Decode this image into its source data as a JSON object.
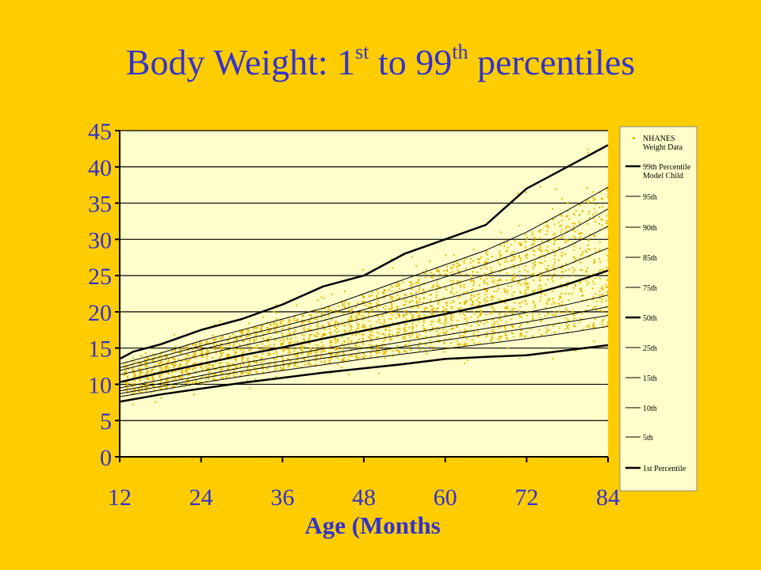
{
  "title": {
    "part1": "Body Weight:  1",
    "sup1": "st",
    "part2": " to 99",
    "sup2": "th",
    "part3": " percentiles"
  },
  "colors": {
    "background": "#FFCC00",
    "plot_area": "#FFFFCC",
    "text": "#3333CC",
    "points": "#E8B800",
    "lines": "#000000"
  },
  "chart_data": {
    "type": "line",
    "title": "Body Weight:  1st to 99th percentiles",
    "xlabel": "Age (Months",
    "ylabel": "",
    "xlim": [
      12,
      84
    ],
    "ylim": [
      0,
      45
    ],
    "xticks": [
      12,
      24,
      36,
      48,
      60,
      72,
      84
    ],
    "yticks": [
      0,
      5,
      10,
      15,
      20,
      25,
      30,
      35,
      40,
      45
    ],
    "grid": "horizontal",
    "legend_placement": "right",
    "scatter_series": {
      "name": "NHANES Weight Data",
      "description_ages_months": [
        12,
        84
      ],
      "style": "dense scatter of small points around the median curve"
    },
    "series": [
      {
        "name": "99th Percentile Model Child",
        "bold": true,
        "x": [
          12,
          14,
          18,
          24,
          30,
          36,
          42,
          48,
          54,
          60,
          66,
          72,
          78,
          84
        ],
        "y": [
          13.5,
          14.5,
          15.5,
          17.5,
          19,
          21,
          23.5,
          25,
          28,
          30,
          32,
          37,
          40,
          43
        ]
      },
      {
        "name": "95th",
        "bold": false,
        "x": [
          12,
          18,
          24,
          30,
          36,
          42,
          48,
          54,
          60,
          66,
          72,
          78,
          84
        ],
        "y": [
          12.8,
          14.3,
          16,
          17.5,
          19,
          20.5,
          22.5,
          24.5,
          26.5,
          28.5,
          31,
          34,
          37.2
        ]
      },
      {
        "name": "90th",
        "bold": false,
        "x": [
          12,
          18,
          24,
          30,
          36,
          42,
          48,
          54,
          60,
          66,
          72,
          78,
          84
        ],
        "y": [
          12.3,
          13.8,
          15.3,
          16.7,
          18,
          19.5,
          21.2,
          23,
          24.8,
          26.6,
          28.5,
          31,
          34.2
        ]
      },
      {
        "name": "85th",
        "bold": false,
        "x": [
          12,
          18,
          24,
          30,
          36,
          42,
          48,
          54,
          60,
          66,
          72,
          78,
          84
        ],
        "y": [
          11.9,
          13.3,
          14.8,
          16.1,
          17.4,
          18.8,
          20.3,
          21.9,
          23.5,
          25.1,
          26.8,
          29,
          31.8
        ]
      },
      {
        "name": "75th",
        "bold": false,
        "x": [
          12,
          18,
          24,
          30,
          36,
          42,
          48,
          54,
          60,
          66,
          72,
          78,
          84
        ],
        "y": [
          11.3,
          12.6,
          14,
          15.3,
          16.5,
          17.8,
          19.1,
          20.5,
          21.8,
          23.2,
          24.6,
          26.5,
          28.8
        ]
      },
      {
        "name": "50th",
        "bold": true,
        "x": [
          12,
          18,
          24,
          30,
          36,
          42,
          48,
          54,
          60,
          66,
          72,
          78,
          84
        ],
        "y": [
          10.3,
          11.6,
          12.8,
          14,
          15.1,
          16.3,
          17.4,
          18.6,
          19.7,
          20.9,
          22.2,
          23.8,
          25.7
        ]
      },
      {
        "name": "25th",
        "bold": false,
        "x": [
          12,
          18,
          24,
          30,
          36,
          42,
          48,
          54,
          60,
          66,
          72,
          78,
          84
        ],
        "y": [
          9.5,
          10.6,
          11.8,
          12.9,
          13.9,
          14.9,
          15.9,
          16.9,
          17.9,
          18.9,
          19.9,
          21,
          22.3
        ]
      },
      {
        "name": "15th",
        "bold": false,
        "x": [
          12,
          18,
          24,
          30,
          36,
          42,
          48,
          54,
          60,
          66,
          72,
          78,
          84
        ],
        "y": [
          9.1,
          10.1,
          11.2,
          12.3,
          13.2,
          14.1,
          15,
          15.9,
          16.8,
          17.7,
          18.6,
          19.6,
          20.7
        ]
      },
      {
        "name": "10th",
        "bold": false,
        "x": [
          12,
          18,
          24,
          30,
          36,
          42,
          48,
          54,
          60,
          66,
          72,
          78,
          84
        ],
        "y": [
          8.7,
          9.7,
          10.8,
          11.8,
          12.7,
          13.6,
          14.4,
          15.2,
          16.1,
          16.9,
          17.7,
          18.6,
          19.5
        ]
      },
      {
        "name": "5th",
        "bold": false,
        "x": [
          12,
          18,
          24,
          30,
          36,
          42,
          48,
          54,
          60,
          66,
          72,
          78,
          84
        ],
        "y": [
          8.3,
          9.2,
          10.2,
          11.1,
          11.9,
          12.7,
          13.5,
          14.2,
          14.9,
          15.6,
          16.3,
          17.1,
          18
        ]
      },
      {
        "name": "1st Percentile",
        "bold": true,
        "x": [
          12,
          18,
          24,
          30,
          36,
          42,
          48,
          54,
          60,
          66,
          72,
          78,
          84
        ],
        "y": [
          7.6,
          8.6,
          9.4,
          10.2,
          10.9,
          11.6,
          12.2,
          12.8,
          13.5,
          13.8,
          14,
          14.7,
          15.4
        ]
      }
    ],
    "legend": [
      {
        "label": [
          "NHANES",
          "Weight Data"
        ],
        "kind": "point"
      },
      {
        "label": [
          "99th Percentile",
          "Model Child"
        ],
        "kind": "bold"
      },
      {
        "label": [
          "95th"
        ],
        "kind": "thin"
      },
      {
        "label": [
          "90th"
        ],
        "kind": "thin"
      },
      {
        "label": [
          "85th"
        ],
        "kind": "thin"
      },
      {
        "label": [
          "75th"
        ],
        "kind": "thin"
      },
      {
        "label": [
          "50th"
        ],
        "kind": "bold"
      },
      {
        "label": [
          "25th"
        ],
        "kind": "thin"
      },
      {
        "label": [
          "15th"
        ],
        "kind": "thin"
      },
      {
        "label": [
          "10th"
        ],
        "kind": "thin"
      },
      {
        "label": [
          "5th"
        ],
        "kind": "thin"
      },
      {
        "label": [
          "1st Percentile"
        ],
        "kind": "bold"
      }
    ]
  }
}
